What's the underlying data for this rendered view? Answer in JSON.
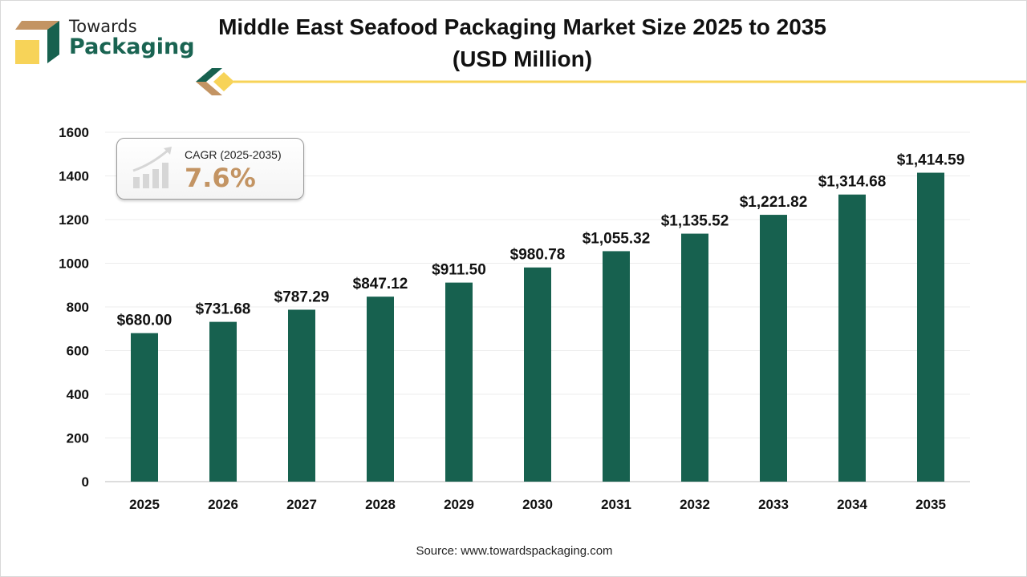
{
  "brand": {
    "line1": "Towards",
    "line2": "Packaging"
  },
  "colors": {
    "bar": "#17614f",
    "accent": "#f7d358",
    "tan": "#c39463"
  },
  "cagr": {
    "label": "CAGR (2025-2035)",
    "value": "7.6%"
  },
  "source": "Source: www.towardspackaging.com",
  "chart_data": {
    "type": "bar",
    "title": "Middle East Seafood Packaging Market Size 2025 to 2035",
    "subtitle": "(USD Million)",
    "categories": [
      "2025",
      "2026",
      "2027",
      "2028",
      "2029",
      "2030",
      "2031",
      "2032",
      "2033",
      "2034",
      "2035"
    ],
    "values": [
      680.0,
      731.68,
      787.29,
      847.12,
      911.5,
      980.78,
      1055.32,
      1135.52,
      1221.82,
      1314.68,
      1414.59
    ],
    "data_labels": [
      "$680.00",
      "$731.68",
      "$787.29",
      "$847.12",
      "$911.50",
      "$980.78",
      "$1,055.32",
      "$1,135.52",
      "$1,221.82",
      "$1,314.68",
      "$1,414.59"
    ],
    "yticks": [
      "0",
      "200",
      "400",
      "600",
      "800",
      "1000",
      "1200",
      "1400",
      "1600"
    ],
    "ylim": [
      0,
      1600
    ],
    "grid": true,
    "xlabel": "",
    "ylabel": ""
  }
}
